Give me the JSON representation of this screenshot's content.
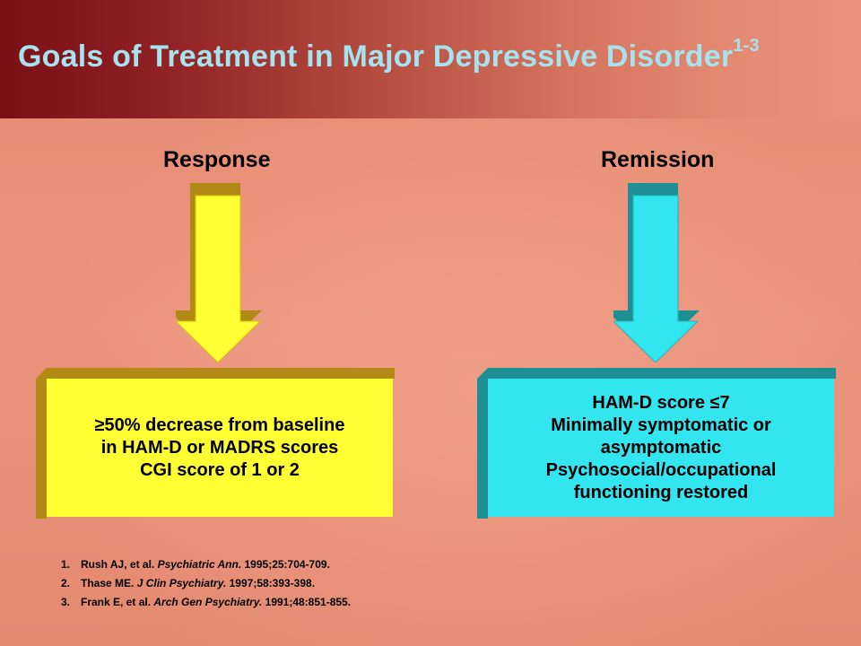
{
  "slide": {
    "title": "Goals of Treatment in Major Depressive Disorder",
    "title_superscript": "1-3",
    "colors": {
      "title": "#a6e3ee",
      "band": "#7a0f16",
      "yellow": "#ffff33",
      "cyan": "#33e5ee",
      "background": "#e8927a"
    }
  },
  "response": {
    "heading": "Response",
    "lines": [
      "≥50% decrease from baseline",
      "in HAM-D or MADRS scores",
      "CGI score of 1 or 2"
    ],
    "arrow_icon": "down-arrow-icon"
  },
  "remission": {
    "heading": "Remission",
    "lines": [
      "HAM-D score ≤7",
      "Minimally symptomatic or",
      "asymptomatic",
      "Psychosocial/occupational",
      "functioning restored"
    ],
    "arrow_icon": "down-arrow-icon"
  },
  "references": [
    {
      "num": "1.",
      "pre": "Rush AJ, et al. ",
      "journal": "Psychiatric Ann.",
      "post": " 1995;25:704-709."
    },
    {
      "num": "2.",
      "pre": "Thase ME. ",
      "journal": "J Clin Psychiatry.",
      "post": " 1997;58:393-398."
    },
    {
      "num": "3.",
      "pre": "Frank E, et al. ",
      "journal": "Arch Gen Psychiatry.",
      "post": " 1991;48:851-855."
    }
  ]
}
